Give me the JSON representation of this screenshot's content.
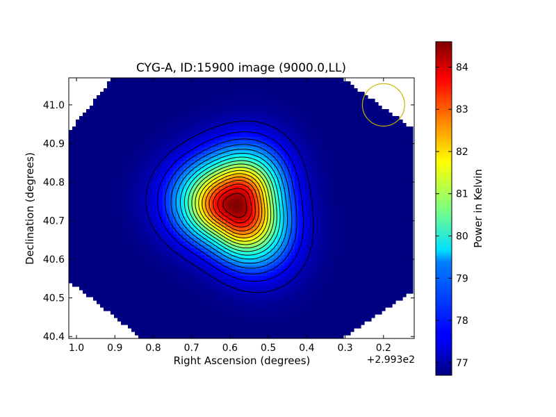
{
  "chart_data": {
    "type": "heatmap",
    "title": "CYG-A, ID:15900 image (9000.0,LL)",
    "xlabel": "Right Ascension (degrees)",
    "ylabel": "Declination (degrees)",
    "x_offset_label": "+2.993e2",
    "xlim": [
      1.02,
      0.12
    ],
    "ylim": [
      40.395,
      41.07
    ],
    "x_inverted": true,
    "x_ticks": [
      1.0,
      0.9,
      0.8,
      0.7,
      0.6,
      0.5,
      0.4,
      0.3,
      0.2
    ],
    "x_tick_labels": [
      "1.0",
      "0.9",
      "0.8",
      "0.7",
      "0.6",
      "0.5",
      "0.4",
      "0.3",
      "0.2"
    ],
    "y_ticks": [
      40.4,
      40.5,
      40.6,
      40.7,
      40.8,
      40.9,
      41.0
    ],
    "y_tick_labels": [
      "40.4",
      "40.5",
      "40.6",
      "40.7",
      "40.8",
      "40.9",
      "41.0"
    ],
    "colorbar": {
      "label": "Power in Kelvin",
      "range": [
        76.7,
        84.6
      ],
      "ticks": [
        77,
        78,
        79,
        80,
        81,
        82,
        83,
        84
      ],
      "tick_labels": [
        "77",
        "78",
        "79",
        "80",
        "81",
        "82",
        "83",
        "84"
      ],
      "colormap": "jet"
    },
    "peak": {
      "ra_offset": 0.585,
      "dec": 40.74,
      "value": 84.6
    },
    "baseline_value": 76.7,
    "source_extent_deg": 0.09,
    "contour_levels": 17,
    "beam": {
      "ra_offset": 0.2,
      "dec": 41.0,
      "radius_deg": 0.055,
      "color": "#c8b400"
    },
    "grid": false,
    "legend": "none"
  }
}
